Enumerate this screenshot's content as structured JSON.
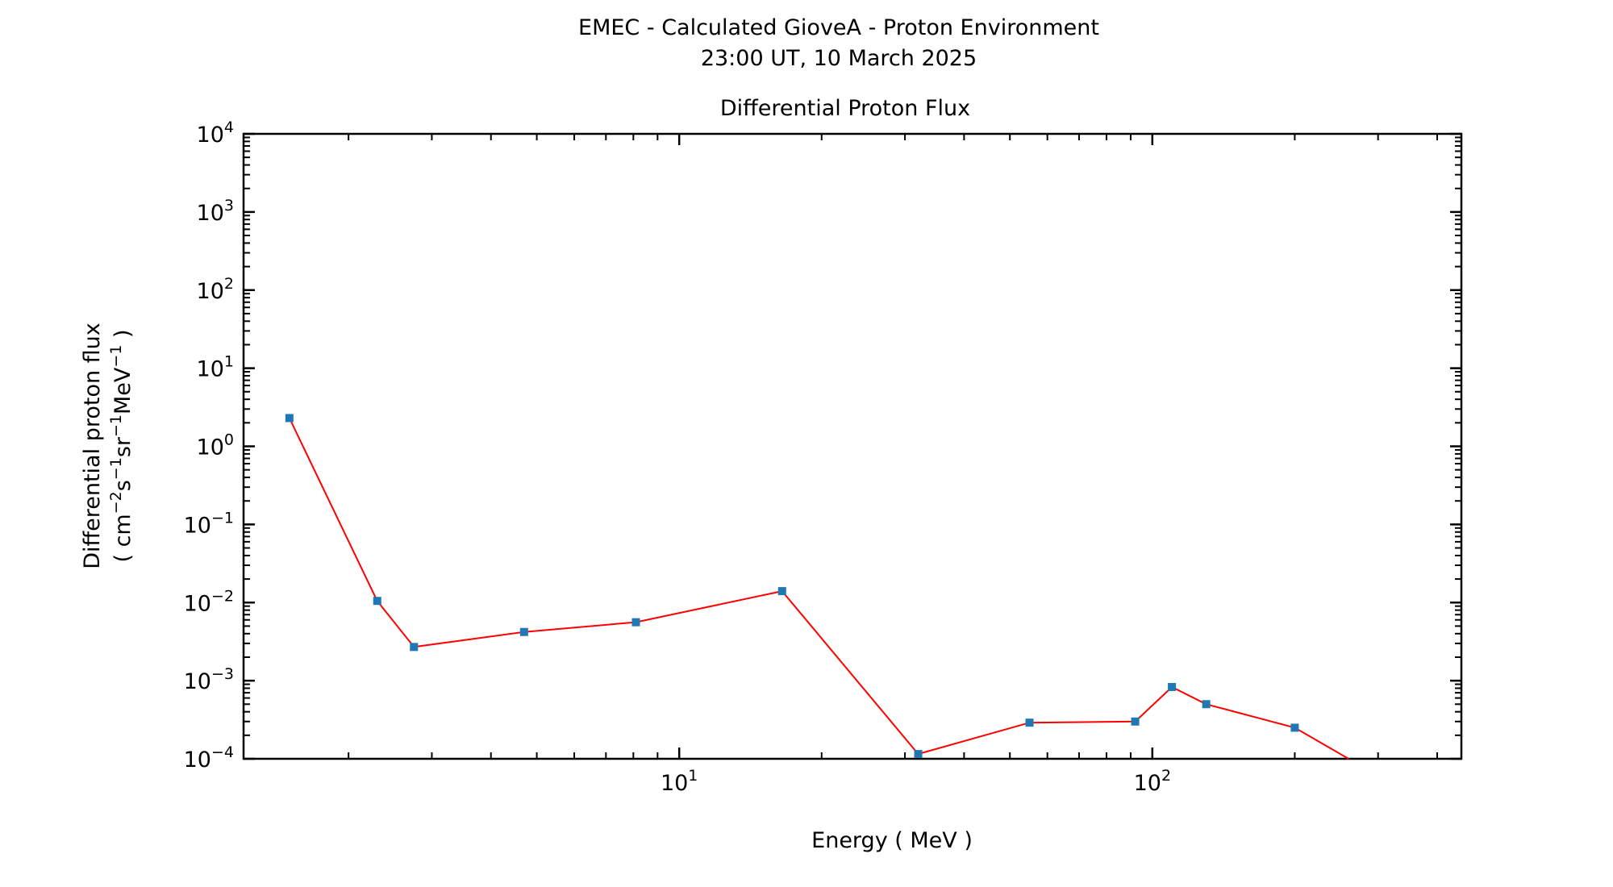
{
  "header": {
    "title": "EMEC - Calculated GioveA - Proton Environment",
    "subtitle": "23:00 UT, 10 March 2025"
  },
  "chart_data": {
    "type": "line",
    "title": "Differential Proton Flux",
    "xlabel": "Energy ( MeV )",
    "ylabel_line1": "Differential proton flux",
    "ylabel_units": {
      "pre": "( cm",
      "cm_exp": "−2",
      "s": "s",
      "s_exp": "−1",
      "sr": "sr",
      "sr_exp": "−1",
      "mev": "MeV",
      "mev_exp": "−1",
      "post": " )"
    },
    "x_scale": "log",
    "y_scale": "log",
    "xlim": [
      1.2,
      450
    ],
    "ylim": [
      0.0001,
      10000
    ],
    "x_ticks": [
      {
        "value": 10,
        "base": "10",
        "exp": "1"
      },
      {
        "value": 100,
        "base": "10",
        "exp": "2"
      }
    ],
    "y_ticks": [
      {
        "value": 10000,
        "base": "10",
        "exp": "4"
      },
      {
        "value": 1000,
        "base": "10",
        "exp": "3"
      },
      {
        "value": 100,
        "base": "10",
        "exp": "2"
      },
      {
        "value": 10,
        "base": "10",
        "exp": "1"
      },
      {
        "value": 1,
        "base": "10",
        "exp": "0"
      },
      {
        "value": 0.1,
        "base": "10",
        "exp": "−1"
      },
      {
        "value": 0.01,
        "base": "10",
        "exp": "−2"
      },
      {
        "value": 0.001,
        "base": "10",
        "exp": "−3"
      },
      {
        "value": 0.0001,
        "base": "10",
        "exp": "−4"
      }
    ],
    "series": [
      {
        "line_color": "#ff0000",
        "marker_color": "#1f77b4",
        "points": [
          {
            "x": 1.5,
            "y": 2.3
          },
          {
            "x": 2.3,
            "y": 0.0105
          },
          {
            "x": 2.75,
            "y": 0.0027
          },
          {
            "x": 4.7,
            "y": 0.0042
          },
          {
            "x": 8.1,
            "y": 0.0056
          },
          {
            "x": 16.5,
            "y": 0.014
          },
          {
            "x": 32,
            "y": 0.000115
          },
          {
            "x": 55,
            "y": 0.00029
          },
          {
            "x": 92,
            "y": 0.0003
          },
          {
            "x": 110,
            "y": 0.00083
          },
          {
            "x": 130,
            "y": 0.0005
          },
          {
            "x": 200,
            "y": 0.00025
          },
          {
            "x": 260,
            "y": 0.0001
          }
        ]
      }
    ],
    "grid": false,
    "legend": "none"
  }
}
